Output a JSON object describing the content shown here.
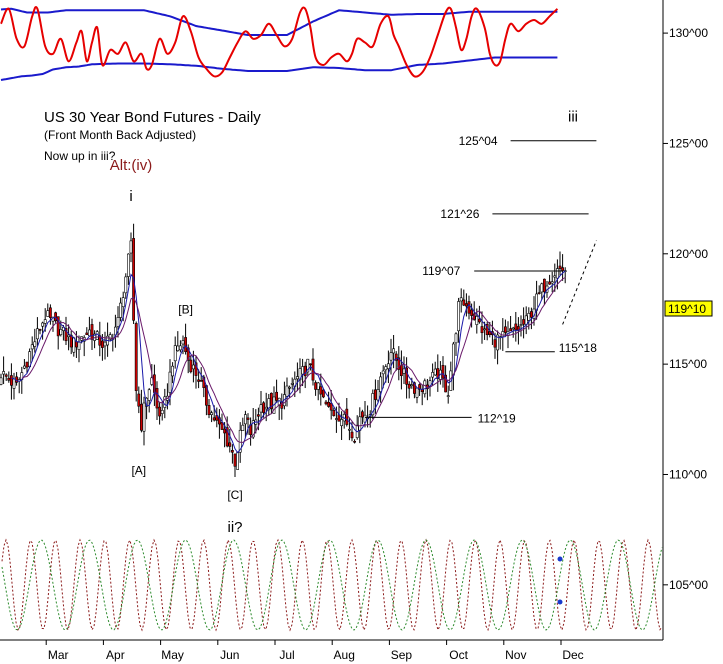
{
  "chart_data": {
    "type": "candlestick",
    "title": "US 30 Year Bond Futures - Daily",
    "subtitle": "(Front Month Back Adjusted)",
    "note": "Now up in iii?",
    "y_axis": {
      "range": [
        102.5,
        131.5
      ],
      "ticks": [
        "130^00",
        "125^00",
        "120^00",
        "115^00",
        "110^00",
        "105^00"
      ],
      "tick_values": [
        130,
        125,
        120,
        115,
        110,
        105
      ],
      "current_price_label": "119^10",
      "current_price_value": 119.31,
      "current_price_color": "#ffff00"
    },
    "x_axis": {
      "months": [
        "Mar",
        "Apr",
        "May",
        "Jun",
        "Jul",
        "Aug",
        "Sep",
        "Oct",
        "Nov",
        "Dec"
      ]
    },
    "wave_labels": [
      {
        "text": "Alt:(iv)",
        "color": "#8b1a1a",
        "bar": 50,
        "price": 123.8
      },
      {
        "text": "i",
        "color": "#000000",
        "bar": 50,
        "price": 122.4
      },
      {
        "text": "[A]",
        "color": "#000000",
        "bar": 53,
        "price": 110.0
      },
      {
        "text": "[B]",
        "color": "#000000",
        "bar": 71,
        "price": 117.3
      },
      {
        "text": "[C]",
        "color": "#000000",
        "bar": 90,
        "price": 108.9
      },
      {
        "text": "ii?",
        "color": "#000000",
        "bar": 90,
        "price": 107.4
      },
      {
        "text": "iii",
        "color": "#000000",
        "bar": 220,
        "price": 126.0
      }
    ],
    "levels": [
      {
        "label": "125^04",
        "value": 125.12,
        "from_bar": 196,
        "to_bar": 229
      },
      {
        "label": "121^26",
        "value": 121.81,
        "from_bar": 189,
        "to_bar": 226
      },
      {
        "label": "119^07",
        "value": 119.22,
        "from_bar": 182,
        "to_bar": 216
      },
      {
        "label": "115^18",
        "value": 115.56,
        "from_bar": 194,
        "to_bar": 213
      },
      {
        "label": "112^19",
        "value": 112.59,
        "from_bar": 140,
        "to_bar": 181
      }
    ],
    "candles": {
      "bar_count": 218,
      "anchors": [
        [
          0,
          114.6
        ],
        [
          6,
          114.0
        ],
        [
          12,
          115.8
        ],
        [
          17,
          117.2
        ],
        [
          22,
          116.6
        ],
        [
          28,
          115.9
        ],
        [
          34,
          116.5
        ],
        [
          40,
          115.8
        ],
        [
          45,
          116.9
        ],
        [
          48,
          119.0
        ],
        [
          50,
          120.3
        ],
        [
          51,
          117.0
        ],
        [
          52,
          113.9
        ],
        [
          54,
          112.3
        ],
        [
          56,
          113.6
        ],
        [
          58,
          114.3
        ],
        [
          60,
          113.0
        ],
        [
          62,
          112.6
        ],
        [
          64,
          113.8
        ],
        [
          66,
          115.2
        ],
        [
          68,
          115.8
        ],
        [
          70,
          116.0
        ],
        [
          72,
          115.2
        ],
        [
          76,
          114.4
        ],
        [
          78,
          113.6
        ],
        [
          80,
          113.0
        ],
        [
          84,
          112.1
        ],
        [
          86,
          111.8
        ],
        [
          88,
          111.3
        ],
        [
          90,
          110.6
        ],
        [
          92,
          111.7
        ],
        [
          94,
          112.6
        ],
        [
          96,
          111.9
        ],
        [
          98,
          112.5
        ],
        [
          100,
          113.1
        ],
        [
          104,
          113.2
        ],
        [
          108,
          113.3
        ],
        [
          112,
          114.1
        ],
        [
          116,
          114.6
        ],
        [
          118,
          115.0
        ],
        [
          122,
          113.8
        ],
        [
          126,
          112.9
        ],
        [
          130,
          112.7
        ],
        [
          134,
          112.2
        ],
        [
          136,
          111.8
        ],
        [
          138,
          112.6
        ],
        [
          142,
          113.0
        ],
        [
          146,
          114.4
        ],
        [
          150,
          115.6
        ],
        [
          152,
          115.2
        ],
        [
          156,
          114.2
        ],
        [
          160,
          113.9
        ],
        [
          164,
          114.1
        ],
        [
          168,
          114.6
        ],
        [
          172,
          113.8
        ],
        [
          174,
          115.7
        ],
        [
          176,
          117.6
        ],
        [
          178,
          117.8
        ],
        [
          182,
          117.2
        ],
        [
          186,
          116.4
        ],
        [
          190,
          116.1
        ],
        [
          194,
          116.2
        ],
        [
          198,
          116.5
        ],
        [
          202,
          116.9
        ],
        [
          206,
          117.9
        ],
        [
          210,
          118.8
        ],
        [
          214,
          119.3
        ],
        [
          217,
          119.3
        ]
      ],
      "range_scale": 1.15,
      "body_color_up": "#ffffff",
      "body_color_down": "#cc0000"
    },
    "moving_averages": [
      {
        "period": 5,
        "color": "#1a1aaa"
      },
      {
        "period": 9,
        "color": "#6a1a6a"
      }
    ],
    "indicator_panel": {
      "red_line": [
        [
          0,
          0.75
        ],
        [
          3,
          0.95
        ],
        [
          6,
          0.55
        ],
        [
          9,
          0.45
        ],
        [
          12,
          0.85
        ],
        [
          14,
          0.95
        ],
        [
          17,
          0.45
        ],
        [
          20,
          0.35
        ],
        [
          23,
          0.55
        ],
        [
          26,
          0.25
        ],
        [
          29,
          0.5
        ],
        [
          31,
          0.65
        ],
        [
          33,
          0.25
        ],
        [
          35,
          0.5
        ],
        [
          37,
          0.7
        ],
        [
          39,
          0.2
        ],
        [
          42,
          0.4
        ],
        [
          45,
          0.35
        ],
        [
          48,
          0.5
        ],
        [
          51,
          0.25
        ],
        [
          54,
          0.35
        ],
        [
          56,
          0.15
        ],
        [
          58,
          0.2
        ],
        [
          61,
          0.55
        ],
        [
          64,
          0.35
        ],
        [
          67,
          0.5
        ],
        [
          70,
          0.85
        ],
        [
          73,
          0.65
        ],
        [
          76,
          0.3
        ],
        [
          79,
          0.15
        ],
        [
          82,
          0.05
        ],
        [
          85,
          0.1
        ],
        [
          88,
          0.3
        ],
        [
          91,
          0.5
        ],
        [
          94,
          0.65
        ],
        [
          97,
          0.55
        ],
        [
          100,
          0.6
        ],
        [
          103,
          0.75
        ],
        [
          106,
          0.6
        ],
        [
          109,
          0.45
        ],
        [
          112,
          0.55
        ],
        [
          115,
          0.9
        ],
        [
          117,
          0.95
        ],
        [
          119,
          0.7
        ],
        [
          121,
          0.3
        ],
        [
          124,
          0.2
        ],
        [
          127,
          0.3
        ],
        [
          130,
          0.35
        ],
        [
          133,
          0.25
        ],
        [
          135,
          0.35
        ],
        [
          137,
          0.55
        ],
        [
          140,
          0.5
        ],
        [
          143,
          0.45
        ],
        [
          146,
          0.75
        ],
        [
          149,
          0.85
        ],
        [
          151,
          0.6
        ],
        [
          153,
          0.45
        ],
        [
          156,
          0.2
        ],
        [
          159,
          0.05
        ],
        [
          162,
          0.1
        ],
        [
          165,
          0.3
        ],
        [
          168,
          0.6
        ],
        [
          171,
          0.9
        ],
        [
          173,
          0.95
        ],
        [
          175,
          0.7
        ],
        [
          177,
          0.4
        ],
        [
          179,
          0.55
        ],
        [
          181,
          0.85
        ],
        [
          183,
          0.95
        ],
        [
          186,
          0.7
        ],
        [
          188,
          0.35
        ],
        [
          190,
          0.2
        ],
        [
          192,
          0.25
        ],
        [
          194,
          0.55
        ],
        [
          196,
          0.75
        ],
        [
          199,
          0.65
        ],
        [
          202,
          0.75
        ],
        [
          205,
          0.8
        ],
        [
          208,
          0.75
        ],
        [
          211,
          0.85
        ],
        [
          214,
          0.95
        ]
      ],
      "upper_band": [
        [
          0,
          0.94
        ],
        [
          4,
          0.95
        ],
        [
          10,
          0.9
        ],
        [
          18,
          0.9
        ],
        [
          25,
          0.93
        ],
        [
          35,
          0.93
        ],
        [
          45,
          0.93
        ],
        [
          55,
          0.93
        ],
        [
          65,
          0.85
        ],
        [
          75,
          0.72
        ],
        [
          85,
          0.66
        ],
        [
          95,
          0.6
        ],
        [
          110,
          0.6
        ],
        [
          120,
          0.78
        ],
        [
          130,
          0.93
        ],
        [
          140,
          0.9
        ],
        [
          150,
          0.87
        ],
        [
          160,
          0.88
        ],
        [
          170,
          0.88
        ],
        [
          180,
          0.91
        ],
        [
          190,
          0.91
        ],
        [
          200,
          0.91
        ],
        [
          210,
          0.91
        ],
        [
          214,
          0.91
        ]
      ],
      "lower_band": [
        [
          0,
          0.0
        ],
        [
          8,
          0.05
        ],
        [
          12,
          0.06
        ],
        [
          16,
          0.08
        ],
        [
          20,
          0.14
        ],
        [
          25,
          0.17
        ],
        [
          30,
          0.18
        ],
        [
          35,
          0.21
        ],
        [
          45,
          0.22
        ],
        [
          55,
          0.22
        ],
        [
          65,
          0.21
        ],
        [
          75,
          0.19
        ],
        [
          85,
          0.15
        ],
        [
          95,
          0.12
        ],
        [
          110,
          0.12
        ],
        [
          120,
          0.17
        ],
        [
          130,
          0.16
        ],
        [
          140,
          0.13
        ],
        [
          150,
          0.13
        ],
        [
          160,
          0.2
        ],
        [
          170,
          0.22
        ],
        [
          180,
          0.26
        ],
        [
          190,
          0.3
        ],
        [
          200,
          0.3
        ],
        [
          214,
          0.3
        ]
      ]
    },
    "cycles": {
      "series": [
        {
          "color": "#8b1a1a",
          "period_bars": 9.5,
          "phase": 0.3
        },
        {
          "color": "#2e8b2e",
          "period_bars": 18.5,
          "phase": 2.6
        }
      ],
      "dot_color": "#1a3acc"
    }
  }
}
